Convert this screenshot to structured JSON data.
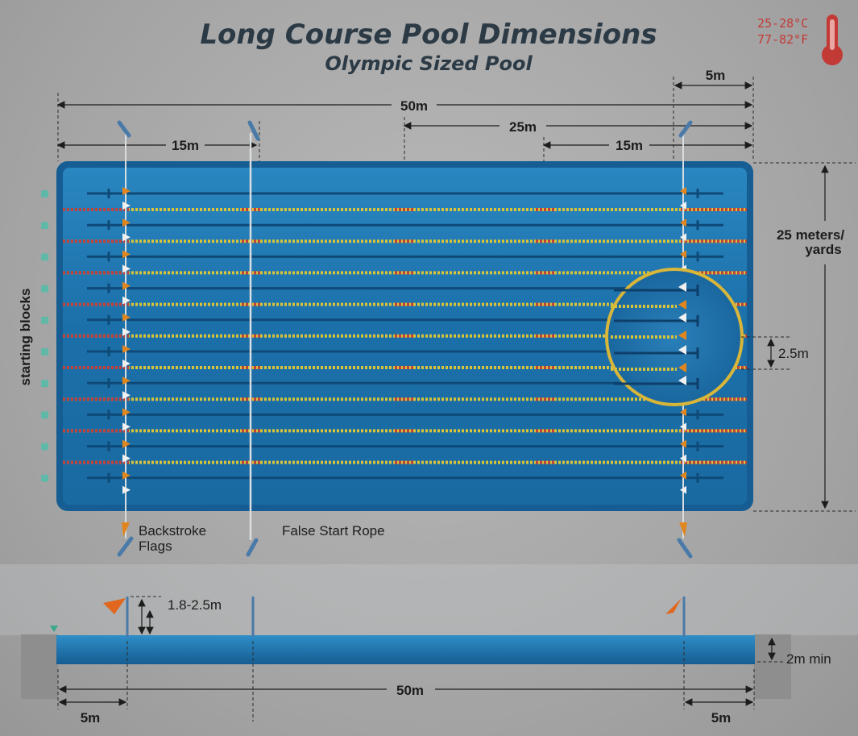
{
  "title": "Long Course Pool Dimensions",
  "subtitle": "Olympic Sized Pool",
  "temperature": {
    "celsius": "25-28°C",
    "fahrenheit": "77-82°F",
    "icon": "thermometer-icon",
    "color": "#c23a36"
  },
  "top_view": {
    "length_label": "50m",
    "half_label": "25m",
    "left_flag_label": "15m",
    "right_flag_label": "15m",
    "end_label": "5m",
    "width_label_line1": "25 meters/",
    "width_label_line2": "yards",
    "lane_width_label": "2.5m",
    "starting_blocks_label": "starting blocks",
    "backstroke_label_line1": "Backstroke",
    "backstroke_label_line2": "Flags",
    "false_start_label": "False Start Rope"
  },
  "side_view": {
    "flag_height_label": "1.8-2.5m",
    "depth_label": "2m min",
    "length_label": "50m",
    "left_end_label": "5m",
    "right_end_label": "5m"
  },
  "colors": {
    "water": "#1b6fa8",
    "water_dark": "#0f4f7f",
    "lane_rope_yellow": "#d8c43a",
    "lane_rope_red": "#c2413a",
    "highlight_circle": "#d8b63a"
  }
}
